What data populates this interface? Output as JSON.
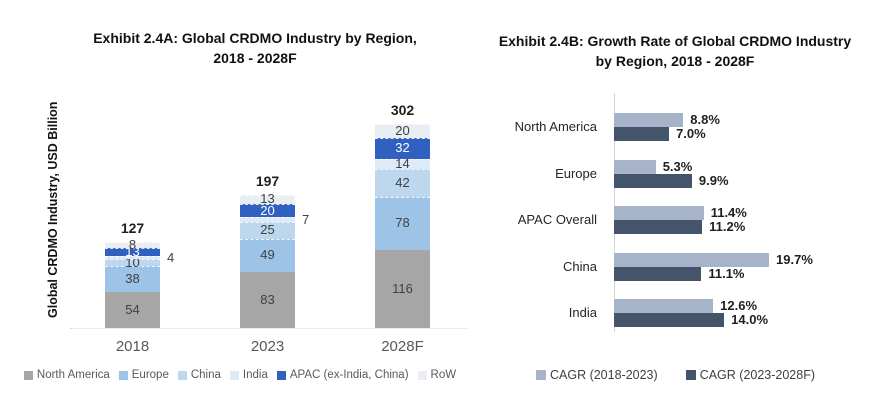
{
  "page": {
    "background": "#ffffff"
  },
  "chart_data": [
    {
      "type": "bar",
      "stacked": true,
      "title": "Exhibit 2.4A: Global CRDMO Industry by Region, 2018 - 2028F",
      "title_lines": [
        "Exhibit 2.4A: Global CRDMO Industry by Region,",
        "2018 - 2028F"
      ],
      "ylabel": "Global CRDMO Industry, USD Billion",
      "xlabel": "",
      "categories": [
        "2018",
        "2023",
        "2028F"
      ],
      "series": [
        {
          "name": "North America",
          "color": "#a6a6a6",
          "label_color": "#404040",
          "values": [
            54,
            83,
            116
          ]
        },
        {
          "name": "Europe",
          "color": "#9dc3e6",
          "label_color": "#404040",
          "values": [
            38,
            49,
            78
          ]
        },
        {
          "name": "China",
          "color": "#bdd7ee",
          "label_color": "#404040",
          "values": [
            10,
            25,
            42
          ]
        },
        {
          "name": "India",
          "color": "#deebf7",
          "label_color": "#404040",
          "values": [
            4,
            7,
            14
          ],
          "label_outside": [
            true,
            true,
            false
          ]
        },
        {
          "name": "APAC (ex-India, China)",
          "color": "#3060c0",
          "label_color": "#ffffff",
          "values": [
            13,
            20,
            32
          ]
        },
        {
          "name": "RoW",
          "color": "#e9eef5",
          "label_color": "#404040",
          "values": [
            8,
            13,
            20
          ]
        }
      ],
      "totals": [
        127,
        197,
        302
      ],
      "ylim": [
        0,
        320
      ],
      "grid": false,
      "legend_position": "bottom"
    },
    {
      "type": "bar-horizontal",
      "stacked": false,
      "title": "Exhibit 2.4B: Growth Rate of Global CRDMO Industry by Region, 2018 - 2028F",
      "title_lines": [
        "Exhibit 2.4B: Growth Rate of Global CRDMO Industry",
        "by Region, 2018 - 2028F"
      ],
      "categories": [
        "North America",
        "Europe",
        "APAC Overall",
        "China",
        "India"
      ],
      "series": [
        {
          "name": "CAGR (2018-2023)",
          "color": "#a6b3c9",
          "values": [
            8.8,
            5.3,
            11.4,
            19.7,
            12.6
          ]
        },
        {
          "name": "CAGR (2023-2028F)",
          "color": "#44546a",
          "values": [
            7.0,
            9.9,
            11.2,
            11.1,
            14.0
          ]
        }
      ],
      "value_suffix": "%",
      "xlim": [
        0,
        22
      ],
      "grid": false,
      "legend_position": "bottom"
    }
  ]
}
